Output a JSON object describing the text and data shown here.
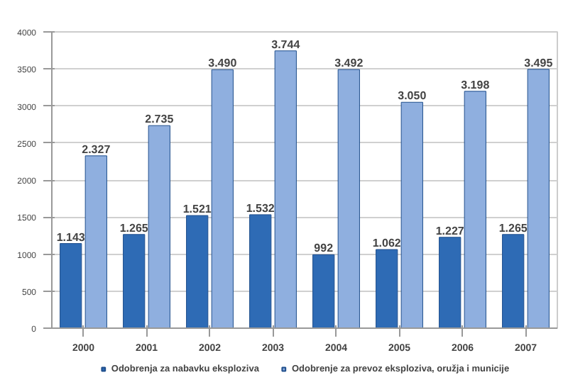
{
  "chart_data": {
    "type": "bar",
    "categories": [
      "2000",
      "2001",
      "2002",
      "2003",
      "2004",
      "2005",
      "2006",
      "2007"
    ],
    "series": [
      {
        "name": "Odobrenja za nabavku eksploziva",
        "color": "#2e6bb5",
        "values": [
          1143,
          1265,
          1521,
          1532,
          992,
          1062,
          1227,
          1265
        ],
        "value_labels": [
          "1.143",
          "1.265",
          "1.521",
          "1.532",
          "992",
          "1.062",
          "1.227",
          "1.265"
        ]
      },
      {
        "name": "Odobrenje za prevoz eksploziva, oružja i municije",
        "color": "#8fafdf",
        "values": [
          2327,
          2735,
          3490,
          3744,
          3492,
          3050,
          3198,
          3495
        ],
        "value_labels": [
          "2.327",
          "2.735",
          "3.490",
          "3.744",
          "3.492",
          "3.050",
          "3.198",
          "3.495"
        ]
      }
    ],
    "ylim": [
      0,
      4000
    ],
    "yticks": [
      0,
      500,
      1000,
      1500,
      2000,
      2500,
      3000,
      3500,
      4000
    ],
    "grid": "y",
    "legend": "bottom"
  }
}
